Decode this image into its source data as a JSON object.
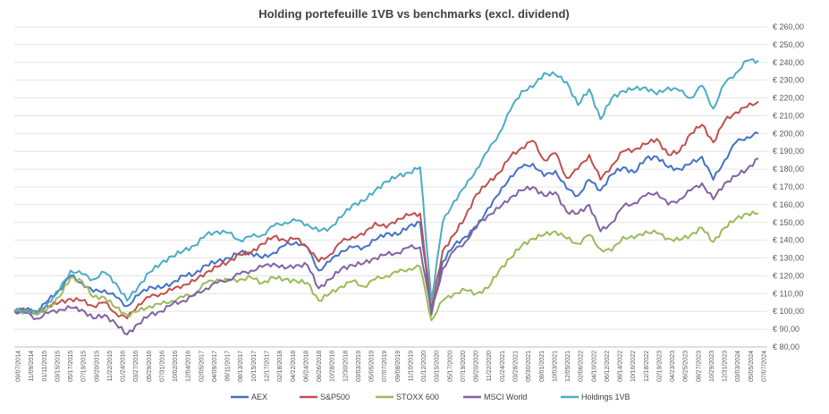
{
  "chart_data": {
    "type": "line",
    "title": "Holding portefeuille 1VB vs benchmarks (excl. dividend)",
    "xlabel": "",
    "ylabel": "",
    "ylim": [
      80,
      260
    ],
    "yticks": [
      "€ 80,00",
      "€ 90,00",
      "€ 100,00",
      "€ 110,00",
      "€ 120,00",
      "€ 130,00",
      "€ 140,00",
      "€ 150,00",
      "€ 160,00",
      "€ 170,00",
      "€ 180,00",
      "€ 190,00",
      "€ 200,00",
      "€ 210,00",
      "€ 220,00",
      "€ 230,00",
      "€ 240,00",
      "€ 250,00",
      "€ 260,00"
    ],
    "ytick_values": [
      80,
      90,
      100,
      110,
      120,
      130,
      140,
      150,
      160,
      170,
      180,
      190,
      200,
      210,
      220,
      230,
      240,
      250,
      260
    ],
    "xticks": [
      "09/07/2014",
      "11/09/2014",
      "01/11/2015",
      "03/15/2015",
      "05/17/2015",
      "07/19/2015",
      "09/20/2015",
      "11/22/2015",
      "01/24/2016",
      "03/27/2016",
      "05/29/2016",
      "07/31/2016",
      "10/02/2016",
      "12/04/2016",
      "02/05/2017",
      "04/09/2017",
      "06/11/2017",
      "08/13/2017",
      "10/15/2017",
      "12/17/2017",
      "02/18/2018",
      "04/22/2018",
      "06/24/2018",
      "08/26/2018",
      "10/28/2018",
      "12/30/2018",
      "03/03/2019",
      "05/05/2019",
      "07/07/2019",
      "09/08/2019",
      "11/10/2019",
      "01/12/2020",
      "03/15/2020",
      "05/17/2020",
      "07/19/2020",
      "09/20/2020",
      "11/22/2020",
      "01/24/2021",
      "03/28/2021",
      "05/30/2021",
      "08/01/2021",
      "10/03/2021",
      "12/05/2021",
      "02/06/2022",
      "04/10/2022",
      "06/12/2022",
      "08/14/2022",
      "10/16/2022",
      "12/18/2022",
      "02/19/2023",
      "04/23/2023",
      "06/25/2023",
      "08/27/2023",
      "10/29/2023",
      "12/31/2023",
      "03/03/2024",
      "05/05/2024",
      "07/07/2024"
    ],
    "grid": true,
    "legend": "bottom",
    "series": [
      {
        "name": "AEX",
        "color": "#4472C4",
        "values": [
          100,
          101,
          100,
          106,
          112,
          120,
          116,
          111,
          112,
          108,
          103,
          109,
          114,
          113,
          116,
          120,
          121,
          126,
          128,
          130,
          133,
          133,
          130,
          133,
          137,
          139,
          136,
          123,
          128,
          134,
          136,
          136,
          140,
          144,
          143,
          148,
          150,
          98,
          128,
          137,
          142,
          147,
          158,
          166,
          176,
          181,
          183,
          176,
          179,
          169,
          165,
          174,
          168,
          177,
          181,
          178,
          186,
          187,
          181,
          180,
          183,
          187,
          174,
          185,
          195,
          198,
          200
        ]
      },
      {
        "name": "S&P500",
        "color": "#C0504D",
        "values": [
          100,
          101,
          99,
          103,
          105,
          107,
          106,
          103,
          105,
          99,
          96,
          104,
          108,
          110,
          112,
          115,
          117,
          122,
          125,
          128,
          132,
          133,
          138,
          142,
          140,
          141,
          136,
          128,
          132,
          139,
          142,
          143,
          150,
          147,
          152,
          154,
          155,
          101,
          134,
          143,
          153,
          166,
          172,
          178,
          187,
          192,
          196,
          185,
          189,
          175,
          180,
          188,
          174,
          182,
          190,
          191,
          194,
          197,
          188,
          190,
          200,
          205,
          195,
          207,
          212,
          215,
          218
        ]
      },
      {
        "name": "STOXX 600",
        "color": "#9BBB59",
        "values": [
          100,
          100,
          98,
          102,
          108,
          119,
          117,
          108,
          108,
          102,
          98,
          100,
          103,
          104,
          106,
          108,
          110,
          116,
          118,
          117,
          118,
          119,
          116,
          119,
          118,
          117,
          116,
          106,
          110,
          114,
          117,
          114,
          118,
          120,
          122,
          124,
          125,
          95,
          106,
          110,
          112,
          110,
          113,
          123,
          130,
          137,
          141,
          143,
          145,
          141,
          138,
          143,
          135,
          134,
          142,
          141,
          145,
          144,
          141,
          140,
          143,
          147,
          139,
          147,
          152,
          155,
          155
        ]
      },
      {
        "name": "MSCI World",
        "color": "#8064A2",
        "values": [
          100,
          99,
          96,
          99,
          101,
          102,
          101,
          96,
          98,
          93,
          87,
          93,
          98,
          100,
          104,
          106,
          109,
          113,
          116,
          118,
          121,
          123,
          125,
          127,
          124,
          126,
          126,
          113,
          118,
          124,
          126,
          127,
          130,
          132,
          133,
          136,
          136,
          99,
          124,
          134,
          139,
          148,
          154,
          158,
          164,
          168,
          170,
          165,
          167,
          156,
          155,
          160,
          145,
          150,
          159,
          161,
          165,
          167,
          160,
          163,
          168,
          172,
          163,
          172,
          176,
          180,
          186
        ]
      },
      {
        "name": "Holdings 1VB",
        "color": "#4BACC6",
        "values": [
          100,
          101,
          99,
          105,
          112,
          123,
          121,
          118,
          122,
          116,
          106,
          114,
          122,
          127,
          131,
          134,
          137,
          143,
          145,
          144,
          140,
          142,
          143,
          148,
          150,
          151,
          149,
          145,
          147,
          153,
          160,
          162,
          168,
          173,
          176,
          178,
          181,
          106,
          150,
          162,
          170,
          180,
          190,
          200,
          213,
          224,
          226,
          234,
          233,
          229,
          216,
          225,
          208,
          220,
          224,
          225,
          226,
          222,
          226,
          224,
          220,
          227,
          214,
          228,
          234,
          241,
          241
        ]
      }
    ]
  },
  "legend_items": [
    "AEX",
    "S&P500",
    "STOXX 600",
    "MSCI World",
    "Holdings 1VB"
  ]
}
